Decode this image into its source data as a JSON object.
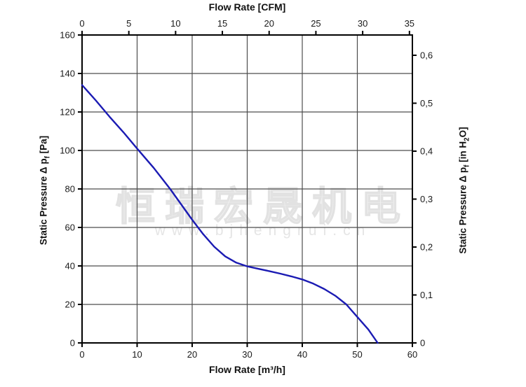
{
  "watermark": {
    "line1": "恒瑞宏晟机电",
    "line2": "www.bjhengrui.cn"
  },
  "chart_data": {
    "type": "line",
    "title": "",
    "description": "Fan static pressure vs flow rate performance curve",
    "axes": {
      "x_bottom": {
        "label": "Flow Rate [m³/h]",
        "min": 0,
        "max": 60,
        "ticks": [
          0,
          10,
          20,
          30,
          40,
          50,
          60
        ]
      },
      "x_top": {
        "label": "Flow Rate [CFM]",
        "min": 0,
        "max": 35.315,
        "ticks": [
          0,
          5,
          10,
          15,
          20,
          25,
          30,
          35
        ]
      },
      "y_left": {
        "label_main": "Static Pressure Δ p",
        "label_sub": "f",
        "label_unit": " [Pa]",
        "min": 0,
        "max": 160,
        "ticks": [
          0,
          20,
          40,
          60,
          80,
          100,
          120,
          140,
          160
        ]
      },
      "y_right": {
        "label_main": "Static Pressure Δ p",
        "label_sub": "f",
        "label_unit_pre": " [in H",
        "label_unit_sub": "2",
        "label_unit_post": "O]",
        "min": 0,
        "max": 0.6423,
        "ticks": [
          0,
          0.1,
          0.2,
          0.3,
          0.4,
          0.5,
          0.6
        ],
        "tick_labels": [
          "0",
          "0,1",
          "0,2",
          "0,3",
          "0,4",
          "0,5",
          "0,6"
        ]
      }
    },
    "grid": {
      "on": true,
      "x_values": [
        10,
        20,
        30,
        40,
        50
      ],
      "y_values": [
        20,
        40,
        60,
        80,
        100,
        120,
        140
      ]
    },
    "legend": {
      "visible": false
    },
    "series": [
      {
        "name": "static-pressure-curve",
        "color": "#1b1bb3",
        "points": [
          [
            0,
            134
          ],
          [
            2.5,
            126
          ],
          [
            5,
            117.5
          ],
          [
            7.5,
            109.5
          ],
          [
            10,
            101
          ],
          [
            13,
            91
          ],
          [
            16,
            80
          ],
          [
            18,
            72
          ],
          [
            20,
            64
          ],
          [
            22,
            56.5
          ],
          [
            24,
            50
          ],
          [
            26,
            45
          ],
          [
            28,
            41.7
          ],
          [
            30,
            39.8
          ],
          [
            32,
            38.5
          ],
          [
            34,
            37.3
          ],
          [
            36,
            36
          ],
          [
            38,
            34.6
          ],
          [
            40,
            33
          ],
          [
            42,
            30.8
          ],
          [
            44,
            28
          ],
          [
            46,
            24.5
          ],
          [
            48,
            20
          ],
          [
            50,
            13.5
          ],
          [
            52,
            7
          ],
          [
            53.7,
            0
          ]
        ]
      }
    ],
    "colors": {
      "grid": "#4d4d4d",
      "axis": "#000000",
      "text": "#1a1a1a",
      "background": "#ffffff"
    }
  }
}
